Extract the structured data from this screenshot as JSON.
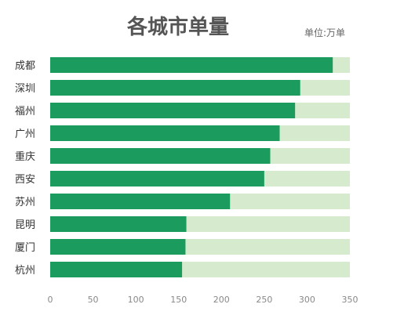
{
  "chart_data": {
    "type": "bar",
    "orientation": "horizontal",
    "title": "各城市单量",
    "unit_label": "单位:万单",
    "categories": [
      "成都",
      "深圳",
      "福州",
      "广州",
      "重庆",
      "西安",
      "苏州",
      "昆明",
      "厦门",
      "杭州"
    ],
    "values": [
      330,
      292,
      286,
      268,
      257,
      250,
      210,
      159,
      158,
      154
    ],
    "xlim": [
      0,
      350
    ],
    "x_ticks": [
      "0",
      "50",
      "100",
      "150",
      "200",
      "250",
      "300",
      "350"
    ],
    "grid": false,
    "colors": {
      "bar": "#1c9b5f",
      "track": "#d6ebcd",
      "title": "#555555"
    }
  }
}
